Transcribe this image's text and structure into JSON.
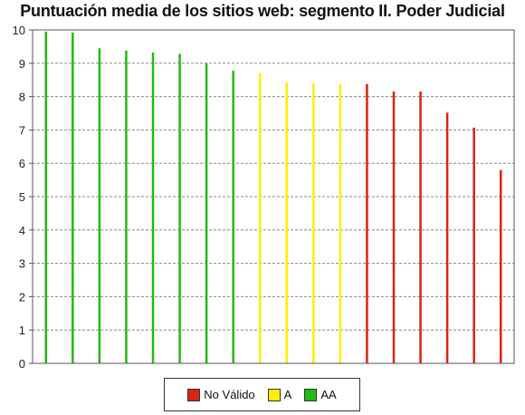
{
  "chart_data": {
    "type": "bar",
    "title": "Puntuación media de los sitios web: segmento II. Poder Judicial",
    "xlabel": "",
    "ylabel": "",
    "ylim": [
      0,
      10
    ],
    "yticks": [
      "0",
      "1",
      "2",
      "3",
      "4",
      "5",
      "6",
      "7",
      "8",
      "9",
      "10"
    ],
    "grid": true,
    "legend_position": "bottom",
    "series": [
      {
        "name": "AA",
        "color": "#22bb11",
        "values": [
          9.95,
          9.92,
          9.45,
          9.38,
          9.33,
          9.28,
          9.0,
          8.78
        ]
      },
      {
        "name": "A",
        "color": "#ffee00",
        "values": [
          8.7,
          8.42,
          8.4,
          8.38
        ]
      },
      {
        "name": "No Válido",
        "color": "#dd2211",
        "values": [
          8.38,
          8.15,
          8.15,
          7.52,
          7.07,
          5.8
        ]
      }
    ],
    "legend": [
      {
        "name": "No Válido",
        "color": "#dd2211"
      },
      {
        "name": "A",
        "color": "#ffee00"
      },
      {
        "name": "AA",
        "color": "#22bb11"
      }
    ]
  }
}
